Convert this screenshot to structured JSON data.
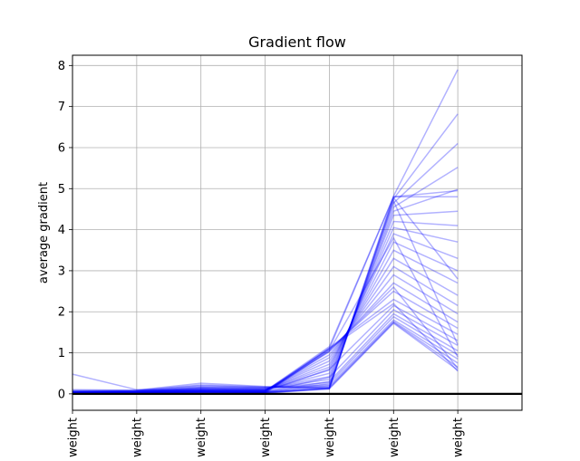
{
  "chart_data": {
    "type": "line",
    "title": "Gradient flow",
    "ylabel": "average gradient",
    "xlabel": "",
    "categories": [
      "weight",
      "weight",
      "weight",
      "weight",
      "weight",
      "weight",
      "weight"
    ],
    "xlim": [
      0,
      7
    ],
    "ylim": [
      -0.4,
      8.25
    ],
    "yticks": [
      "0",
      "1",
      "2",
      "3",
      "4",
      "5",
      "6",
      "7",
      "8"
    ],
    "grid": true,
    "line_color": "#0000ff",
    "zero_line_color": "#000000",
    "series": [
      {
        "values": [
          0.48,
          0.1,
          0.08,
          0.07,
          1.15,
          4.8,
          4.8
        ]
      },
      {
        "values": [
          0.1,
          0.09,
          0.26,
          0.18,
          0.13,
          4.82,
          7.9
        ]
      },
      {
        "values": [
          0.08,
          0.08,
          0.22,
          0.17,
          0.15,
          4.75,
          6.82
        ]
      },
      {
        "values": [
          0.07,
          0.08,
          0.2,
          0.16,
          0.18,
          4.65,
          6.1
        ]
      },
      {
        "values": [
          0.06,
          0.07,
          0.18,
          0.15,
          0.22,
          4.55,
          5.52
        ]
      },
      {
        "values": [
          0.06,
          0.07,
          0.16,
          0.14,
          0.28,
          4.45,
          4.98
        ]
      },
      {
        "values": [
          0.05,
          0.06,
          0.15,
          0.13,
          0.35,
          4.35,
          4.45
        ]
      },
      {
        "values": [
          0.05,
          0.06,
          0.14,
          0.12,
          0.42,
          4.2,
          4.1
        ]
      },
      {
        "values": [
          0.05,
          0.06,
          0.13,
          0.11,
          0.5,
          4.05,
          3.7
        ]
      },
      {
        "values": [
          0.04,
          0.05,
          0.12,
          0.1,
          0.58,
          3.9,
          3.3
        ]
      },
      {
        "values": [
          0.04,
          0.05,
          0.11,
          0.1,
          0.65,
          3.7,
          3.0
        ]
      },
      {
        "values": [
          0.04,
          0.05,
          0.1,
          0.09,
          0.72,
          3.5,
          2.7
        ]
      },
      {
        "values": [
          0.04,
          0.05,
          0.1,
          0.09,
          0.8,
          3.3,
          2.4
        ]
      },
      {
        "values": [
          0.03,
          0.04,
          0.09,
          0.08,
          0.88,
          3.1,
          2.15
        ]
      },
      {
        "values": [
          0.03,
          0.04,
          0.09,
          0.08,
          0.95,
          2.9,
          1.95
        ]
      },
      {
        "values": [
          0.03,
          0.04,
          0.08,
          0.07,
          1.02,
          2.7,
          1.75
        ]
      },
      {
        "values": [
          0.03,
          0.04,
          0.08,
          0.07,
          1.08,
          2.5,
          1.6
        ]
      },
      {
        "values": [
          0.03,
          0.04,
          0.07,
          0.06,
          1.12,
          2.3,
          1.45
        ]
      },
      {
        "values": [
          0.03,
          0.04,
          0.07,
          0.06,
          0.6,
          2.15,
          1.3
        ]
      },
      {
        "values": [
          0.02,
          0.03,
          0.06,
          0.05,
          0.4,
          2.05,
          1.18
        ]
      },
      {
        "values": [
          0.02,
          0.03,
          0.06,
          0.05,
          0.3,
          1.95,
          1.05
        ]
      },
      {
        "values": [
          0.02,
          0.03,
          0.05,
          0.04,
          0.25,
          1.88,
          0.95
        ]
      },
      {
        "values": [
          0.02,
          0.03,
          0.05,
          0.04,
          0.2,
          1.8,
          0.85
        ]
      },
      {
        "values": [
          0.02,
          0.03,
          0.05,
          0.04,
          0.16,
          1.76,
          0.75
        ]
      },
      {
        "values": [
          0.02,
          0.02,
          0.04,
          0.03,
          0.14,
          1.74,
          0.65
        ]
      },
      {
        "values": [
          0.01,
          0.02,
          0.04,
          0.03,
          0.12,
          1.72,
          0.58
        ]
      },
      {
        "values": [
          0.01,
          0.02,
          0.04,
          0.03,
          1.1,
          2.2,
          0.55
        ]
      },
      {
        "values": [
          0.01,
          0.02,
          0.03,
          0.02,
          1.05,
          2.6,
          0.62
        ]
      },
      {
        "values": [
          0.01,
          0.02,
          0.03,
          0.02,
          0.14,
          4.78,
          2.8
        ]
      },
      {
        "values": [
          0.01,
          0.02,
          0.03,
          0.02,
          0.12,
          4.7,
          1.2
        ]
      },
      {
        "values": [
          0.02,
          0.03,
          0.06,
          0.05,
          1.1,
          4.8,
          4.95
        ]
      },
      {
        "values": [
          0.02,
          0.03,
          0.05,
          0.04,
          1.05,
          3.8,
          0.9
        ]
      }
    ]
  }
}
